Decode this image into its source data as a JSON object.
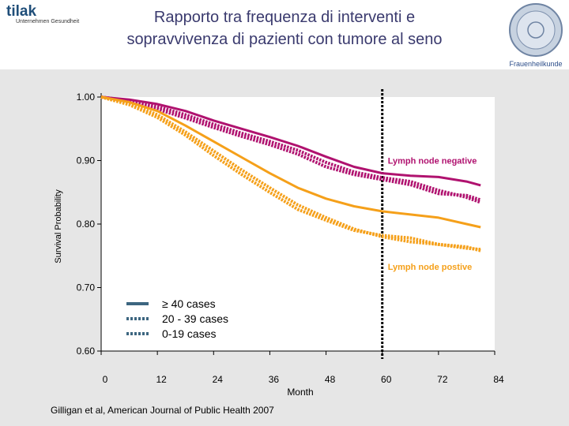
{
  "header": {
    "title_line1": "Rapporto tra frequenza di interventi e",
    "title_line2": "sopravvivenza di pazienti con tumore al seno",
    "logo_text": "tilak",
    "logo_subtext": "Unternehmen Gesundheit",
    "seal_caption": "Frauenheilkunde"
  },
  "colors": {
    "negative": "#b0126f",
    "positive": "#f5a01a",
    "legend_line": "#3d6680",
    "cutoff": "#000000",
    "background": "#e6e6e6"
  },
  "chart_data": {
    "type": "line",
    "xlabel": "Month",
    "ylabel": "Survival Probability",
    "xlim": [
      0,
      84
    ],
    "ylim": [
      0.6,
      1.0
    ],
    "x_ticks": [
      "0",
      "12",
      "24",
      "36",
      "48",
      "60",
      "72",
      "84"
    ],
    "y_ticks": [
      "0.60",
      "0.70",
      "0.80",
      "0.90",
      "1.00"
    ],
    "vertical_marker_x": 60,
    "annotations": [
      {
        "text": "Lymph node negative",
        "x": 60,
        "y": 0.9
      },
      {
        "text": "Lymph node postive",
        "x": 60,
        "y": 0.733
      }
    ],
    "legend": [
      {
        "label": "≥ 40 cases",
        "style": "solid"
      },
      {
        "label": "20 - 39 cases",
        "style": "dotted"
      },
      {
        "label": "0-19 cases",
        "style": "dotted"
      }
    ],
    "series": [
      {
        "group": "negative",
        "style": "solid",
        "x": [
          0,
          6,
          12,
          18,
          24,
          30,
          36,
          42,
          48,
          54,
          60,
          66,
          72,
          78,
          81
        ],
        "y": [
          1.0,
          0.996,
          0.989,
          0.978,
          0.963,
          0.95,
          0.937,
          0.923,
          0.906,
          0.89,
          0.88,
          0.876,
          0.874,
          0.867,
          0.861
        ]
      },
      {
        "group": "negative",
        "style": "dotted",
        "x": [
          0,
          6,
          12,
          18,
          24,
          30,
          36,
          42,
          48,
          54,
          60,
          66,
          72,
          78,
          81
        ],
        "y": [
          1.0,
          0.994,
          0.985,
          0.972,
          0.957,
          0.943,
          0.93,
          0.916,
          0.897,
          0.882,
          0.873,
          0.867,
          0.853,
          0.842,
          0.834
        ]
      },
      {
        "group": "negative",
        "style": "dotted",
        "x": [
          0,
          6,
          12,
          18,
          24,
          30,
          36,
          42,
          48,
          54,
          60,
          66,
          72,
          78,
          81
        ],
        "y": [
          1.0,
          0.992,
          0.981,
          0.967,
          0.952,
          0.938,
          0.925,
          0.91,
          0.89,
          0.878,
          0.87,
          0.862,
          0.848,
          0.845,
          0.838
        ]
      },
      {
        "group": "positive",
        "style": "solid",
        "x": [
          0,
          6,
          12,
          18,
          24,
          30,
          36,
          42,
          48,
          54,
          60,
          66,
          72,
          78,
          81
        ],
        "y": [
          1.0,
          0.992,
          0.978,
          0.955,
          0.93,
          0.905,
          0.88,
          0.857,
          0.84,
          0.828,
          0.82,
          0.815,
          0.81,
          0.8,
          0.795
        ]
      },
      {
        "group": "positive",
        "style": "dotted",
        "x": [
          0,
          6,
          12,
          18,
          24,
          30,
          36,
          42,
          48,
          54,
          60,
          66,
          72,
          78,
          81
        ],
        "y": [
          1.0,
          0.99,
          0.972,
          0.945,
          0.915,
          0.885,
          0.857,
          0.83,
          0.81,
          0.792,
          0.78,
          0.772,
          0.768,
          0.764,
          0.758
        ]
      },
      {
        "group": "positive",
        "style": "dotted",
        "x": [
          0,
          6,
          12,
          18,
          24,
          30,
          36,
          42,
          48,
          54,
          60,
          66,
          72,
          78,
          81
        ],
        "y": [
          1.0,
          0.988,
          0.968,
          0.94,
          0.908,
          0.878,
          0.85,
          0.823,
          0.806,
          0.79,
          0.782,
          0.778,
          0.768,
          0.762,
          0.76
        ]
      }
    ],
    "source": "Gilligan et al, American Journal of Public Health 2007"
  }
}
